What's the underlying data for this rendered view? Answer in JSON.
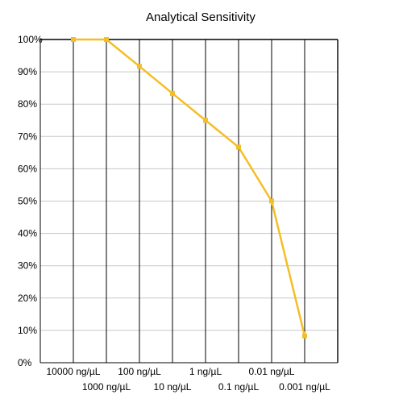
{
  "chart_data": {
    "type": "line",
    "title": "Analytical Sensitivity",
    "xlabel": "",
    "ylabel": "",
    "categories": [
      "10000 ng/µL",
      "1000 ng/µL",
      "100 ng/µL",
      "10 ng/µL",
      "1 ng/µL",
      "0.1 ng/µL",
      "0.01 ng/µL",
      "0.001 ng/µL"
    ],
    "x": [
      1,
      2,
      3,
      4,
      5,
      6,
      7,
      8
    ],
    "series": [
      {
        "values": [
          100,
          100,
          91.7,
          83.3,
          75.0,
          66.7,
          50.0,
          8.3
        ],
        "color": "#F5BE24"
      }
    ],
    "y_ticks": [
      "0%",
      "10%",
      "20%",
      "30%",
      "40%",
      "50%",
      "60%",
      "70%",
      "80%",
      "90%",
      "100%"
    ],
    "ylim": [
      0,
      100
    ],
    "xlim": [
      0,
      9
    ],
    "grid": true,
    "legend": "none"
  }
}
